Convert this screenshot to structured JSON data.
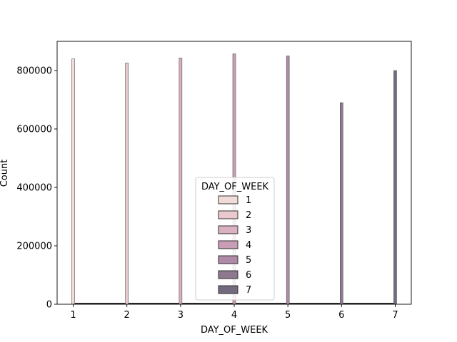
{
  "chart_data": {
    "type": "bar",
    "title": "",
    "xlabel": "DAY_OF_WEEK",
    "ylabel": "Count",
    "x_ticks": [
      1,
      2,
      3,
      4,
      5,
      6,
      7
    ],
    "y_ticks": [
      0,
      200000,
      400000,
      600000,
      800000
    ],
    "y_tick_labels": [
      "0",
      "200000",
      "400000",
      "600000",
      "800000"
    ],
    "xlim": [
      0.7,
      7.3
    ],
    "ylim": [
      0,
      900000
    ],
    "grid": false,
    "legend": {
      "title": "DAY_OF_WEEK",
      "placement": "lower-center",
      "entries": [
        "1",
        "2",
        "3",
        "4",
        "5",
        "6",
        "7"
      ]
    },
    "series": [
      {
        "name": "1",
        "x": 1,
        "value": 840000,
        "color": "#f0dbd8"
      },
      {
        "name": "2",
        "x": 2,
        "value": 826000,
        "color": "#e9c9ce"
      },
      {
        "name": "3",
        "x": 3,
        "value": 843000,
        "color": "#d9b1c1"
      },
      {
        "name": "4",
        "x": 4,
        "value": 857000,
        "color": "#c99db5"
      },
      {
        "name": "5",
        "x": 5,
        "value": 850000,
        "color": "#ae8aa7"
      },
      {
        "name": "6",
        "x": 6,
        "value": 690000,
        "color": "#8e7890"
      },
      {
        "name": "7",
        "x": 7,
        "value": 800000,
        "color": "#746a7f"
      }
    ]
  }
}
